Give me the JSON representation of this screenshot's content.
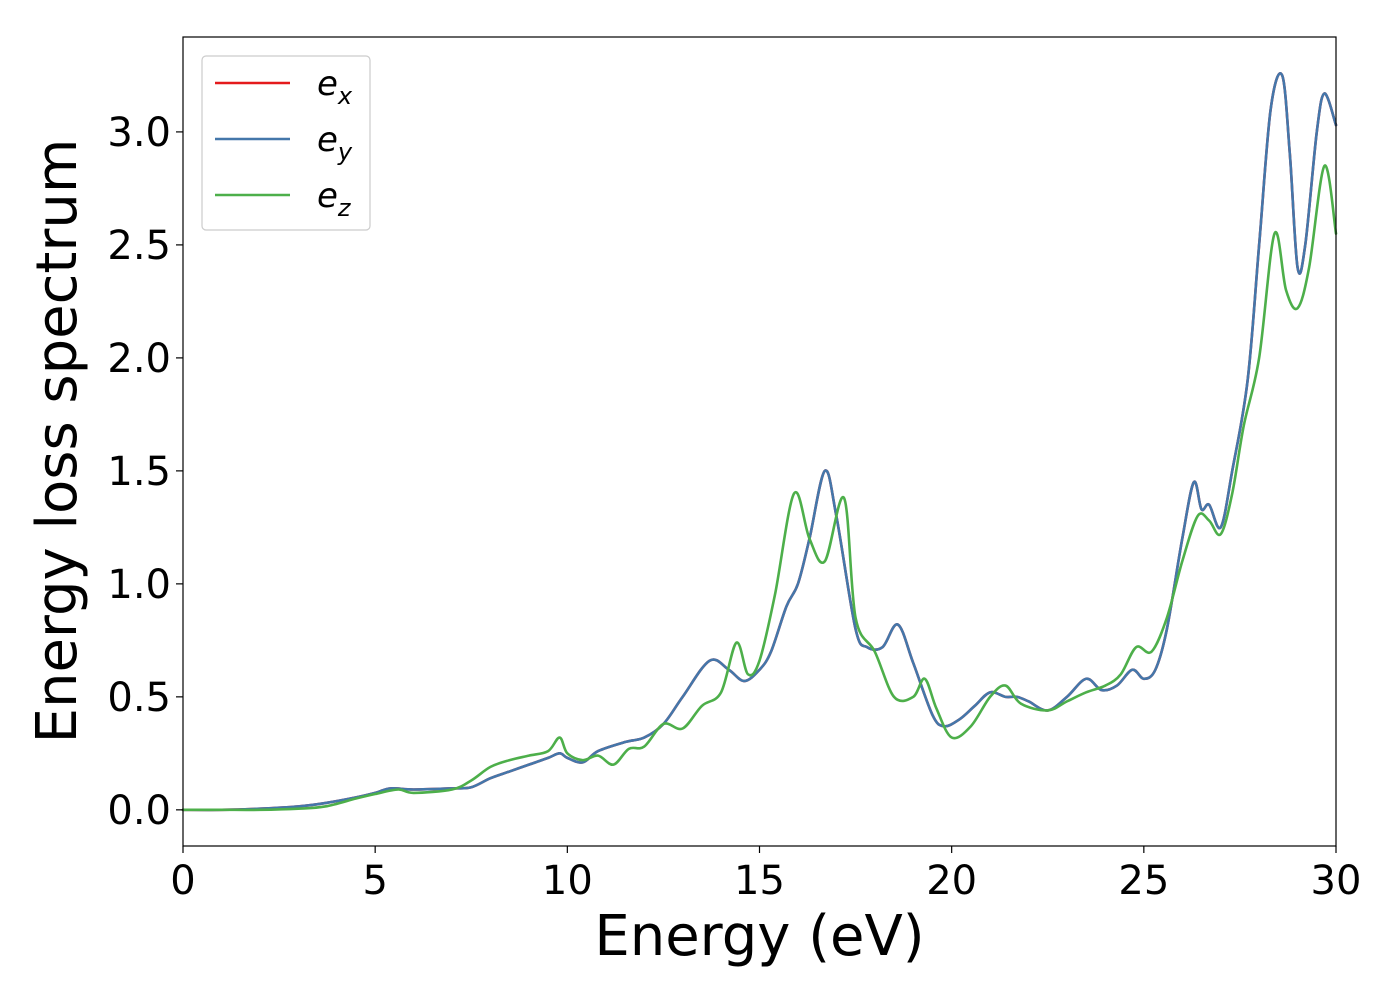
{
  "chart_data": {
    "type": "line",
    "xlabel": "Energy (eV)",
    "ylabel": "Energy loss spectrum",
    "xlim": [
      0,
      30
    ],
    "ylim": [
      -0.16,
      3.42
    ],
    "xticks": [
      0,
      5,
      10,
      15,
      20,
      25,
      30
    ],
    "xtick_labels": [
      "0",
      "5",
      "10",
      "15",
      "20",
      "25",
      "30"
    ],
    "yticks": [
      0.0,
      0.5,
      1.0,
      1.5,
      2.0,
      2.5,
      3.0
    ],
    "ytick_labels": [
      "0.0",
      "0.5",
      "1.0",
      "1.5",
      "2.0",
      "2.5",
      "3.0"
    ],
    "grid": false,
    "legend_position": "top-left",
    "series": [
      {
        "name": "e",
        "subscript": "x",
        "color": "#e41a1c",
        "x": [
          0,
          1,
          2,
          3,
          3.7,
          4.5,
          5,
          5.4,
          6,
          7,
          7.5,
          8,
          8.5,
          9,
          9.5,
          9.8,
          10,
          10.4,
          10.8,
          11.5,
          12,
          12.5,
          13,
          13.7,
          14.2,
          14.6,
          15,
          15.3,
          15.7,
          16,
          16.3,
          16.7,
          17,
          17.5,
          17.8,
          18.2,
          18.6,
          19,
          19.5,
          19.8,
          20.2,
          20.6,
          21,
          21.4,
          21.7,
          22,
          22.5,
          23,
          23.5,
          23.9,
          24.3,
          24.7,
          25,
          25.3,
          25.6,
          26,
          26.3,
          26.5,
          26.7,
          27,
          27.3,
          27.7,
          28,
          28.3,
          28.6,
          28.8,
          29,
          29.2,
          29.5,
          29.7,
          30
        ],
        "y": [
          0,
          0,
          0.005,
          0.015,
          0.03,
          0.055,
          0.075,
          0.095,
          0.09,
          0.095,
          0.1,
          0.14,
          0.17,
          0.2,
          0.23,
          0.25,
          0.23,
          0.21,
          0.26,
          0.3,
          0.32,
          0.38,
          0.5,
          0.66,
          0.62,
          0.57,
          0.62,
          0.7,
          0.9,
          1.0,
          1.2,
          1.5,
          1.3,
          0.8,
          0.72,
          0.72,
          0.82,
          0.65,
          0.42,
          0.37,
          0.4,
          0.46,
          0.52,
          0.5,
          0.5,
          0.48,
          0.44,
          0.5,
          0.58,
          0.53,
          0.55,
          0.62,
          0.58,
          0.62,
          0.8,
          1.2,
          1.45,
          1.33,
          1.35,
          1.25,
          1.5,
          1.9,
          2.5,
          3.1,
          3.25,
          2.9,
          2.4,
          2.5,
          3.0,
          3.17,
          3.03
        ]
      },
      {
        "name": "e",
        "subscript": "y",
        "color": "#4477aa",
        "x": [
          0,
          1,
          2,
          3,
          3.7,
          4.5,
          5,
          5.4,
          6,
          7,
          7.5,
          8,
          8.5,
          9,
          9.5,
          9.8,
          10,
          10.4,
          10.8,
          11.5,
          12,
          12.5,
          13,
          13.7,
          14.2,
          14.6,
          15,
          15.3,
          15.7,
          16,
          16.3,
          16.7,
          17,
          17.5,
          17.8,
          18.2,
          18.6,
          19,
          19.5,
          19.8,
          20.2,
          20.6,
          21,
          21.4,
          21.7,
          22,
          22.5,
          23,
          23.5,
          23.9,
          24.3,
          24.7,
          25,
          25.3,
          25.6,
          26,
          26.3,
          26.5,
          26.7,
          27,
          27.3,
          27.7,
          28,
          28.3,
          28.6,
          28.8,
          29,
          29.2,
          29.5,
          29.7,
          30
        ],
        "y": [
          0,
          0,
          0.005,
          0.015,
          0.03,
          0.055,
          0.075,
          0.095,
          0.09,
          0.095,
          0.1,
          0.14,
          0.17,
          0.2,
          0.23,
          0.25,
          0.23,
          0.21,
          0.26,
          0.3,
          0.32,
          0.38,
          0.5,
          0.66,
          0.62,
          0.57,
          0.62,
          0.7,
          0.9,
          1.0,
          1.2,
          1.5,
          1.3,
          0.8,
          0.72,
          0.72,
          0.82,
          0.65,
          0.42,
          0.37,
          0.4,
          0.46,
          0.52,
          0.5,
          0.5,
          0.48,
          0.44,
          0.5,
          0.58,
          0.53,
          0.55,
          0.62,
          0.58,
          0.62,
          0.8,
          1.2,
          1.45,
          1.33,
          1.35,
          1.25,
          1.5,
          1.9,
          2.5,
          3.1,
          3.25,
          2.9,
          2.4,
          2.5,
          3.0,
          3.17,
          3.03
        ]
      },
      {
        "name": "e",
        "subscript": "z",
        "color": "#4daf4a",
        "x": [
          0,
          1,
          2,
          3,
          3.7,
          4.5,
          5,
          5.6,
          6,
          7,
          7.5,
          8,
          8.5,
          9,
          9.5,
          9.8,
          10,
          10.4,
          10.8,
          11.2,
          11.6,
          12,
          12.5,
          13,
          13.5,
          14,
          14.4,
          14.7,
          15,
          15.4,
          15.9,
          16.3,
          16.7,
          17.2,
          17.5,
          18,
          18.5,
          19,
          19.3,
          19.6,
          20,
          20.5,
          21,
          21.4,
          21.8,
          22.5,
          23,
          23.5,
          24,
          24.4,
          24.8,
          25.2,
          25.6,
          26,
          26.4,
          26.7,
          27,
          27.3,
          27.6,
          28,
          28.4,
          28.7,
          29,
          29.3,
          29.7,
          30
        ],
        "y": [
          0,
          0,
          0,
          0.005,
          0.015,
          0.05,
          0.07,
          0.09,
          0.075,
          0.09,
          0.13,
          0.19,
          0.22,
          0.24,
          0.26,
          0.32,
          0.25,
          0.22,
          0.24,
          0.2,
          0.27,
          0.28,
          0.38,
          0.36,
          0.46,
          0.52,
          0.74,
          0.6,
          0.66,
          0.95,
          1.4,
          1.2,
          1.1,
          1.38,
          0.85,
          0.7,
          0.5,
          0.5,
          0.58,
          0.45,
          0.32,
          0.37,
          0.5,
          0.55,
          0.47,
          0.44,
          0.48,
          0.52,
          0.55,
          0.6,
          0.72,
          0.7,
          0.85,
          1.1,
          1.3,
          1.28,
          1.22,
          1.4,
          1.7,
          2.0,
          2.55,
          2.3,
          2.22,
          2.4,
          2.85,
          2.55
        ]
      }
    ]
  }
}
